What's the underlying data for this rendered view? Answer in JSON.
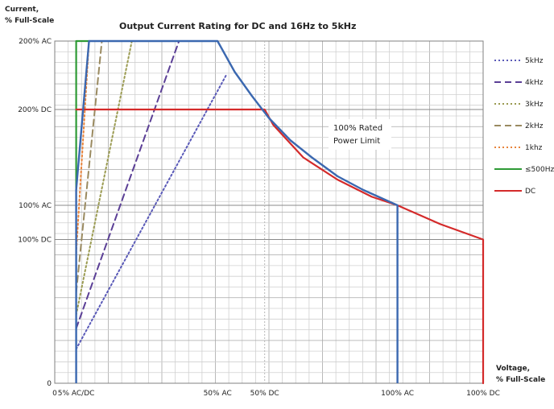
{
  "chart_data": {
    "type": "line",
    "title": "Output Current Rating for DC and 16Hz to 5kHz",
    "ylabel_line1": "Current,",
    "ylabel_line2": "% Full-Scale",
    "xlabel_line1": "Voltage,",
    "xlabel_line2": "% Full-Scale",
    "xlim": [
      0,
      100
    ],
    "ylim": [
      0,
      200
    ],
    "grid": true,
    "legend_position": "right",
    "x_ticks": [
      {
        "value": 0,
        "label": "0"
      },
      {
        "value": 5,
        "label": "5% AC/DC"
      },
      {
        "value": 38,
        "label": "50% AC"
      },
      {
        "value": 49,
        "label": "50% DC"
      },
      {
        "value": 80,
        "label": "100% AC"
      },
      {
        "value": 100,
        "label": "100% DC"
      }
    ],
    "y_ticks": [
      {
        "value": 0,
        "label": "0"
      },
      {
        "value": 84,
        "label": "100% DC"
      },
      {
        "value": 104,
        "label": "100% AC"
      },
      {
        "value": 160,
        "label": "200% DC"
      },
      {
        "value": 200,
        "label": "200% AC"
      }
    ],
    "annotation_line1": "100% Rated",
    "annotation_line2": "Power Limit",
    "series": [
      {
        "name": "5kHz",
        "color": "#5a5ab8",
        "dash": "dot",
        "points": [
          [
            5,
            20
          ],
          [
            40,
            180
          ]
        ]
      },
      {
        "name": "4kHz",
        "color": "#5b3f96",
        "dash": "dash",
        "points": [
          [
            5,
            32
          ],
          [
            29,
            200
          ]
        ]
      },
      {
        "name": "3kHz",
        "color": "#9a9a50",
        "dash": "dot",
        "points": [
          [
            5,
            40
          ],
          [
            18,
            200
          ]
        ]
      },
      {
        "name": "2kHz",
        "color": "#9a8a60",
        "dash": "dash",
        "points": [
          [
            5,
            53
          ],
          [
            11,
            200
          ]
        ]
      },
      {
        "name": "1khz",
        "color": "#e8843c",
        "dash": "dot",
        "points": [
          [
            5,
            76
          ],
          [
            8,
            200
          ]
        ]
      },
      {
        "name": "≤500Hz",
        "color": "#2e9a35",
        "dash": "solid",
        "points": [
          [
            5,
            113
          ],
          [
            5,
            200
          ],
          [
            8,
            200
          ]
        ]
      },
      {
        "name": "DC",
        "color": "#d42a2a",
        "dash": "solid",
        "points": [
          [
            5,
            160
          ],
          [
            49,
            160
          ],
          [
            51,
            151
          ],
          [
            58,
            132
          ],
          [
            66,
            119
          ],
          [
            74,
            109
          ],
          [
            80,
            104
          ],
          [
            90,
            93
          ],
          [
            100,
            84
          ],
          [
            100,
            0
          ]
        ]
      }
    ],
    "limit_curve": {
      "color": "#3b68b0",
      "points": [
        [
          5,
          0
        ],
        [
          5,
          113
        ],
        [
          8,
          200
        ],
        [
          38,
          200
        ],
        [
          42,
          182
        ],
        [
          46,
          168
        ],
        [
          50,
          155
        ],
        [
          55,
          142
        ],
        [
          60,
          132
        ],
        [
          66,
          121
        ],
        [
          72,
          113
        ],
        [
          80,
          104
        ],
        [
          80,
          0
        ]
      ]
    },
    "guide_line": {
      "x": 49,
      "color": "#b8b8b8"
    }
  }
}
